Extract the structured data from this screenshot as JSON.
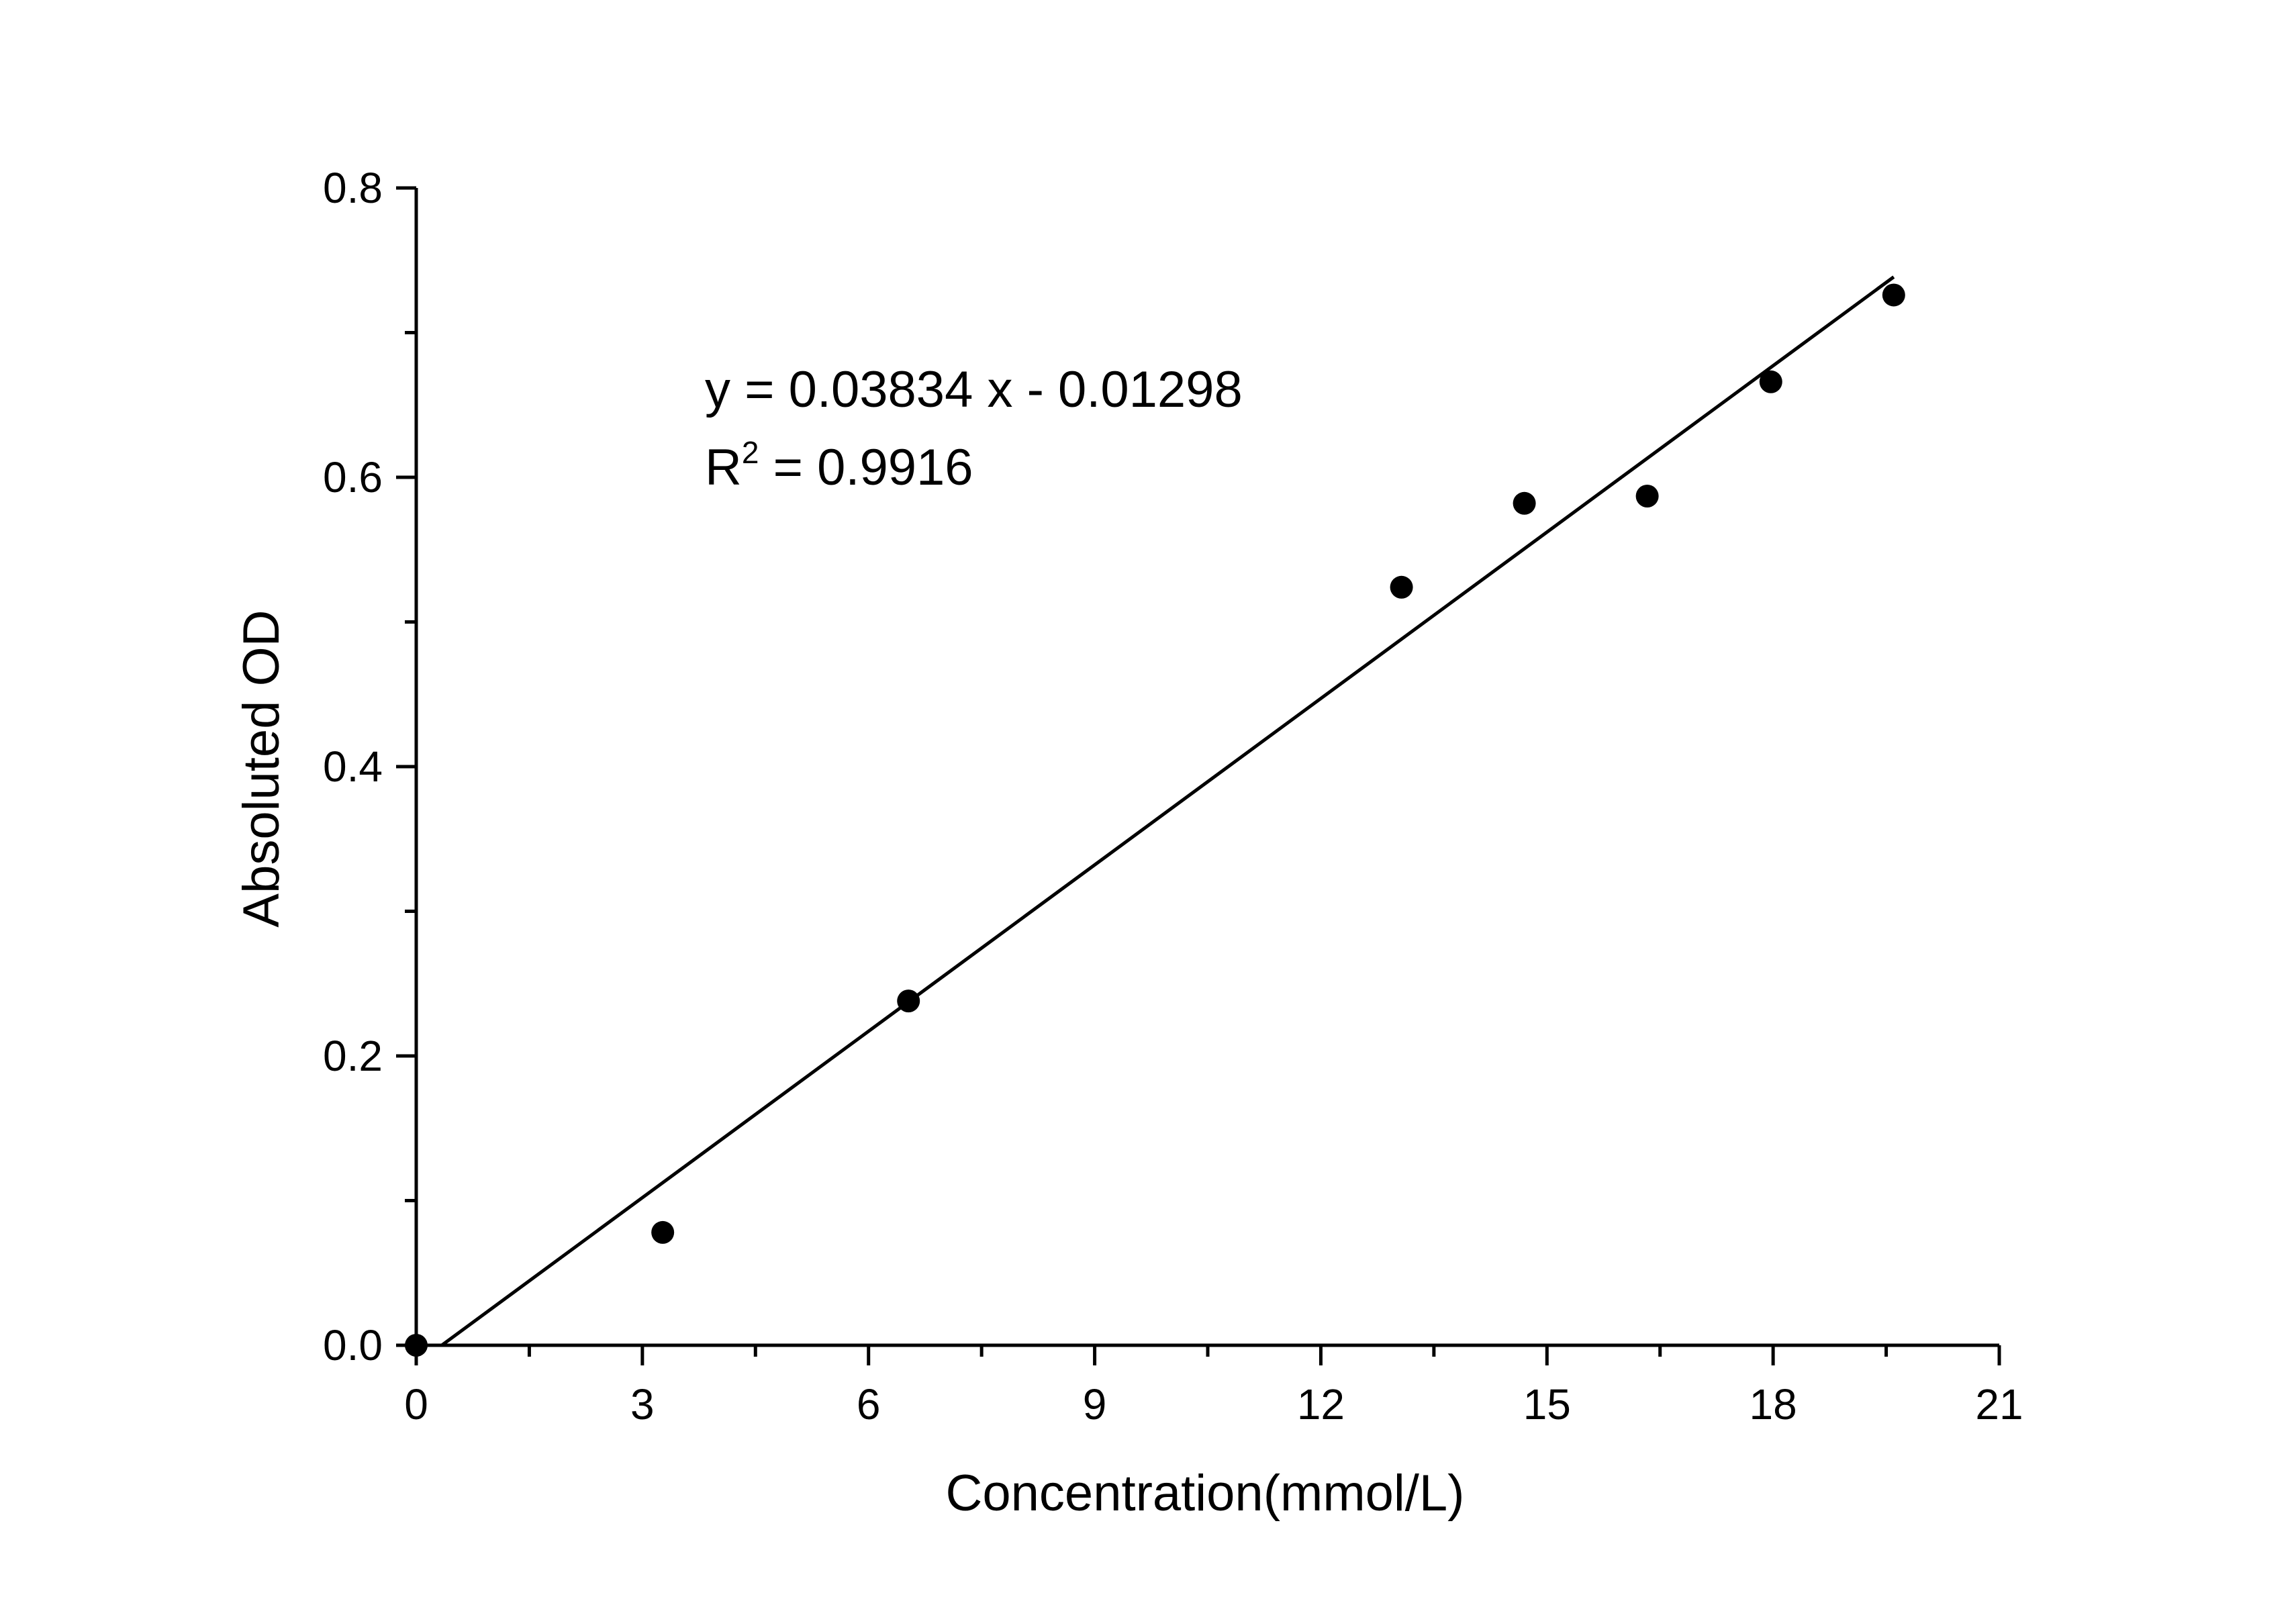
{
  "chart_data": {
    "type": "scatter",
    "title": "",
    "xlabel": "Concentration(mmol/L)",
    "ylabel": "Absoluted OD",
    "xlim": [
      0,
      21
    ],
    "ylim": [
      0,
      0.8
    ],
    "x_ticks": [
      0,
      3,
      6,
      9,
      12,
      15,
      18,
      21
    ],
    "y_ticks": [
      0.0,
      0.2,
      0.4,
      0.6,
      0.8
    ],
    "x_tick_labels": [
      "0",
      "3",
      "6",
      "9",
      "12",
      "15",
      "18",
      "21"
    ],
    "y_tick_labels": [
      "0.0",
      "0.2",
      "0.4",
      "0.6",
      "0.8"
    ],
    "grid": false,
    "series": [
      {
        "x": [
          0,
          3.27,
          6.53,
          13.07,
          14.7,
          16.33,
          17.97,
          19.6
        ],
        "y": [
          0.0,
          0.078,
          0.238,
          0.524,
          0.582,
          0.587,
          0.666,
          0.726
        ]
      }
    ],
    "fit": {
      "type": "linear",
      "slope": 0.03834,
      "intercept": -0.01298,
      "equation_text": "y = 0.03834 x - 0.01298",
      "r2_prefix": "R",
      "r2_sup": "2",
      "r2_suffix": " = 0.9916"
    },
    "colors": {
      "points": "#000000",
      "line": "#000000"
    }
  }
}
